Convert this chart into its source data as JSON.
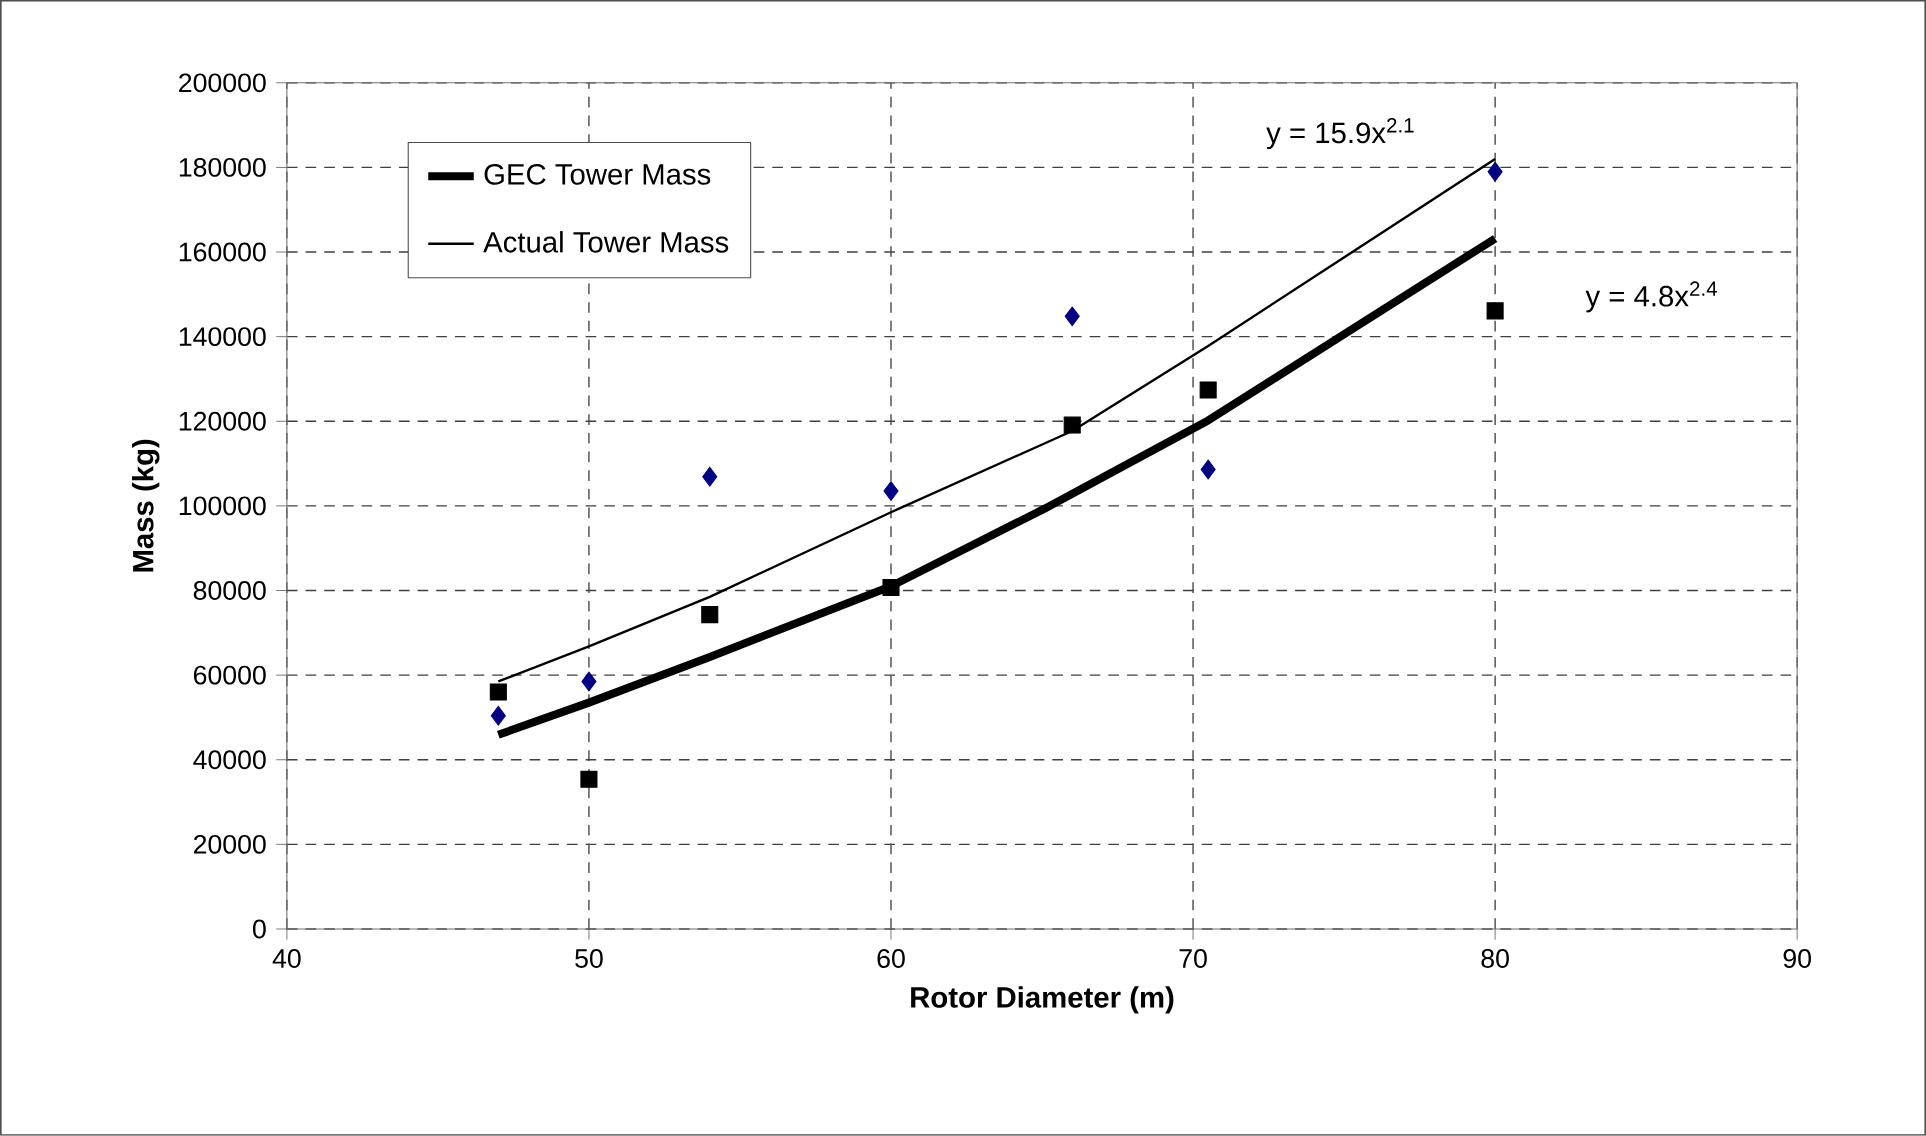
{
  "chart_data": {
    "type": "scatter",
    "xlabel": "Rotor Diameter (m)",
    "ylabel": "Mass (kg)",
    "xlim": [
      40,
      90
    ],
    "xticks": [
      40,
      50,
      60,
      70,
      80,
      90
    ],
    "ylim": [
      0,
      200000
    ],
    "yticks": [
      0,
      20000,
      40000,
      60000,
      80000,
      100000,
      120000,
      140000,
      160000,
      180000,
      200000
    ],
    "grid": true,
    "legend": "top left",
    "series": [
      {
        "type": "line",
        "name": "GEC Tower Mass",
        "color": "#000000",
        "marker": "none",
        "x": [
          47,
          50,
          54,
          60,
          65.1,
          70.5,
          80
        ],
        "values": [
          45900,
          53500,
          64300,
          81000,
          99400,
          120200,
          163200
        ]
      },
      {
        "type": "line",
        "name": "Actual Tower Mass",
        "color": "#000000",
        "marker": "none",
        "x": [
          47,
          50,
          54,
          60,
          66,
          70.5,
          80
        ],
        "values": [
          58500,
          66800,
          78500,
          98500,
          117700,
          137800,
          182000
        ]
      },
      {
        "color": "#000080",
        "marker": "diamond",
        "x": [
          47,
          50,
          54,
          60,
          66,
          70.5,
          80
        ],
        "values": [
          50400,
          58500,
          106900,
          103500,
          144800,
          108600,
          179000
        ]
      },
      {
        "color": "#000000",
        "marker": "square",
        "x": [
          47,
          50,
          54,
          60,
          66,
          70.5,
          80
        ],
        "values": [
          56000,
          35400,
          74300,
          80700,
          119100,
          127400,
          146100
        ]
      }
    ],
    "annotations": [
      "y = 15.9x$^{2.1}$",
      "y = 4.8x$^{2.4}$"
    ]
  }
}
